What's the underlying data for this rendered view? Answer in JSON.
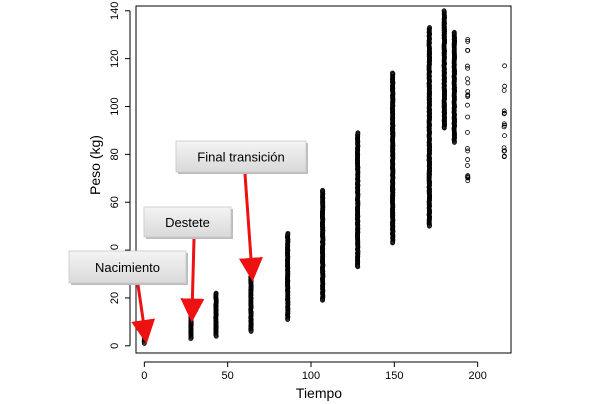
{
  "chart_data": {
    "type": "scatter",
    "title": "",
    "xlabel": "Tiempo",
    "ylabel": "Peso (kg)",
    "xlim": [
      -5,
      220
    ],
    "ylim": [
      -3,
      142
    ],
    "x_ticks": [
      0,
      50,
      100,
      150,
      200
    ],
    "y_ticks": [
      0,
      20,
      40,
      60,
      80,
      100,
      120,
      140
    ],
    "grid": false,
    "legend": "none",
    "marker": "open-circle",
    "point_color": "#000000",
    "groups": [
      {
        "x": 0,
        "y_min": 1,
        "y_max": 3,
        "dense": true
      },
      {
        "x": 28,
        "y_min": 3,
        "y_max": 12,
        "dense": true
      },
      {
        "x": 43,
        "y_min": 4,
        "y_max": 22,
        "dense": true
      },
      {
        "x": 64,
        "y_min": 6,
        "y_max": 29,
        "dense": true
      },
      {
        "x": 86,
        "y_min": 11,
        "y_max": 47,
        "dense": true
      },
      {
        "x": 107,
        "y_min": 19,
        "y_max": 65,
        "dense": true
      },
      {
        "x": 128,
        "y_min": 33,
        "y_max": 89,
        "dense": true
      },
      {
        "x": 149,
        "y_min": 43,
        "y_max": 114,
        "dense": true
      },
      {
        "x": 171,
        "y_min": 50,
        "y_max": 133,
        "dense": true
      },
      {
        "x": 180,
        "y_min": 91,
        "y_max": 140,
        "dense": true
      },
      {
        "x": 186,
        "y_min": 85,
        "y_max": 131,
        "dense": true
      },
      {
        "x": 194,
        "y_min": 69,
        "y_max": 128,
        "dense": false
      },
      {
        "x": 216,
        "y_min": 79,
        "y_max": 117,
        "dense": false
      }
    ],
    "annotations": [
      {
        "text": "Nacimiento",
        "target": [
          0,
          2
        ]
      },
      {
        "text": "Destete",
        "target": [
          28,
          11
        ]
      },
      {
        "text": "Final transición",
        "target": [
          64,
          28
        ]
      }
    ],
    "annotation_arrow_color": "#ee1111",
    "callout_fill": "#e8e8e8"
  }
}
